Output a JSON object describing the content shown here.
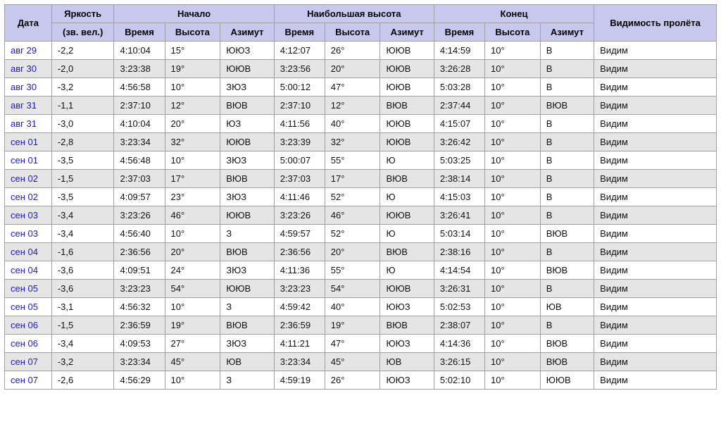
{
  "colors": {
    "header_bg": "#c8c8ee",
    "row_even_bg": "#ffffff",
    "row_odd_bg": "#e5e5e5",
    "border": "#a0a0a0",
    "link": "#1a1ad4",
    "text": "#111111"
  },
  "header": {
    "date": "Дата",
    "brightness": "Яркость",
    "brightness_sub": "(зв. вел.)",
    "start": "Начало",
    "highest": "Наибольшая высота",
    "end": "Конец",
    "visibility": "Видимость пролёта",
    "time": "Время",
    "altitude": "Высота",
    "azimuth": "Азимут"
  },
  "rows": [
    {
      "date": "авг 29",
      "mag": "-2,2",
      "s_t": "4:10:04",
      "s_a": "15°",
      "s_az": "ЮЮЗ",
      "h_t": "4:12:07",
      "h_a": "26°",
      "h_az": "ЮЮВ",
      "e_t": "4:14:59",
      "e_a": "10°",
      "e_az": "В",
      "vis": "Видим"
    },
    {
      "date": "авг 30",
      "mag": "-2,0",
      "s_t": "3:23:38",
      "s_a": "19°",
      "s_az": "ЮЮВ",
      "h_t": "3:23:56",
      "h_a": "20°",
      "h_az": "ЮЮВ",
      "e_t": "3:26:28",
      "e_a": "10°",
      "e_az": "В",
      "vis": "Видим"
    },
    {
      "date": "авг 30",
      "mag": "-3,2",
      "s_t": "4:56:58",
      "s_a": "10°",
      "s_az": "ЗЮЗ",
      "h_t": "5:00:12",
      "h_a": "47°",
      "h_az": "ЮЮВ",
      "e_t": "5:03:28",
      "e_a": "10°",
      "e_az": "В",
      "vis": "Видим"
    },
    {
      "date": "авг 31",
      "mag": "-1,1",
      "s_t": "2:37:10",
      "s_a": "12°",
      "s_az": "ВЮВ",
      "h_t": "2:37:10",
      "h_a": "12°",
      "h_az": "ВЮВ",
      "e_t": "2:37:44",
      "e_a": "10°",
      "e_az": "ВЮВ",
      "vis": "Видим"
    },
    {
      "date": "авг 31",
      "mag": "-3,0",
      "s_t": "4:10:04",
      "s_a": "20°",
      "s_az": "ЮЗ",
      "h_t": "4:11:56",
      "h_a": "40°",
      "h_az": "ЮЮВ",
      "e_t": "4:15:07",
      "e_a": "10°",
      "e_az": "В",
      "vis": "Видим"
    },
    {
      "date": "сен 01",
      "mag": "-2,8",
      "s_t": "3:23:34",
      "s_a": "32°",
      "s_az": "ЮЮВ",
      "h_t": "3:23:39",
      "h_a": "32°",
      "h_az": "ЮЮВ",
      "e_t": "3:26:42",
      "e_a": "10°",
      "e_az": "В",
      "vis": "Видим"
    },
    {
      "date": "сен 01",
      "mag": "-3,5",
      "s_t": "4:56:48",
      "s_a": "10°",
      "s_az": "ЗЮЗ",
      "h_t": "5:00:07",
      "h_a": "55°",
      "h_az": "Ю",
      "e_t": "5:03:25",
      "e_a": "10°",
      "e_az": "В",
      "vis": "Видим"
    },
    {
      "date": "сен 02",
      "mag": "-1,5",
      "s_t": "2:37:03",
      "s_a": "17°",
      "s_az": "ВЮВ",
      "h_t": "2:37:03",
      "h_a": "17°",
      "h_az": "ВЮВ",
      "e_t": "2:38:14",
      "e_a": "10°",
      "e_az": "В",
      "vis": "Видим"
    },
    {
      "date": "сен 02",
      "mag": "-3,5",
      "s_t": "4:09:57",
      "s_a": "23°",
      "s_az": "ЗЮЗ",
      "h_t": "4:11:46",
      "h_a": "52°",
      "h_az": "Ю",
      "e_t": "4:15:03",
      "e_a": "10°",
      "e_az": "В",
      "vis": "Видим"
    },
    {
      "date": "сен 03",
      "mag": "-3,4",
      "s_t": "3:23:26",
      "s_a": "46°",
      "s_az": "ЮЮВ",
      "h_t": "3:23:26",
      "h_a": "46°",
      "h_az": "ЮЮВ",
      "e_t": "3:26:41",
      "e_a": "10°",
      "e_az": "В",
      "vis": "Видим"
    },
    {
      "date": "сен 03",
      "mag": "-3,4",
      "s_t": "4:56:40",
      "s_a": "10°",
      "s_az": "З",
      "h_t": "4:59:57",
      "h_a": "52°",
      "h_az": "Ю",
      "e_t": "5:03:14",
      "e_a": "10°",
      "e_az": "ВЮВ",
      "vis": "Видим"
    },
    {
      "date": "сен 04",
      "mag": "-1,6",
      "s_t": "2:36:56",
      "s_a": "20°",
      "s_az": "ВЮВ",
      "h_t": "2:36:56",
      "h_a": "20°",
      "h_az": "ВЮВ",
      "e_t": "2:38:16",
      "e_a": "10°",
      "e_az": "В",
      "vis": "Видим"
    },
    {
      "date": "сен 04",
      "mag": "-3,6",
      "s_t": "4:09:51",
      "s_a": "24°",
      "s_az": "ЗЮЗ",
      "h_t": "4:11:36",
      "h_a": "55°",
      "h_az": "Ю",
      "e_t": "4:14:54",
      "e_a": "10°",
      "e_az": "ВЮВ",
      "vis": "Видим"
    },
    {
      "date": "сен 05",
      "mag": "-3,6",
      "s_t": "3:23:23",
      "s_a": "54°",
      "s_az": "ЮЮВ",
      "h_t": "3:23:23",
      "h_a": "54°",
      "h_az": "ЮЮВ",
      "e_t": "3:26:31",
      "e_a": "10°",
      "e_az": "В",
      "vis": "Видим"
    },
    {
      "date": "сен 05",
      "mag": "-3,1",
      "s_t": "4:56:32",
      "s_a": "10°",
      "s_az": "З",
      "h_t": "4:59:42",
      "h_a": "40°",
      "h_az": "ЮЮЗ",
      "e_t": "5:02:53",
      "e_a": "10°",
      "e_az": "ЮВ",
      "vis": "Видим"
    },
    {
      "date": "сен 06",
      "mag": "-1,5",
      "s_t": "2:36:59",
      "s_a": "19°",
      "s_az": "ВЮВ",
      "h_t": "2:36:59",
      "h_a": "19°",
      "h_az": "ВЮВ",
      "e_t": "2:38:07",
      "e_a": "10°",
      "e_az": "В",
      "vis": "Видим"
    },
    {
      "date": "сен 06",
      "mag": "-3,4",
      "s_t": "4:09:53",
      "s_a": "27°",
      "s_az": "ЗЮЗ",
      "h_t": "4:11:21",
      "h_a": "47°",
      "h_az": "ЮЮЗ",
      "e_t": "4:14:36",
      "e_a": "10°",
      "e_az": "ВЮВ",
      "vis": "Видим"
    },
    {
      "date": "сен 07",
      "mag": "-3,2",
      "s_t": "3:23:34",
      "s_a": "45°",
      "s_az": "ЮВ",
      "h_t": "3:23:34",
      "h_a": "45°",
      "h_az": "ЮВ",
      "e_t": "3:26:15",
      "e_a": "10°",
      "e_az": "ВЮВ",
      "vis": "Видим"
    },
    {
      "date": "сен 07",
      "mag": "-2,6",
      "s_t": "4:56:29",
      "s_a": "10°",
      "s_az": "З",
      "h_t": "4:59:19",
      "h_a": "26°",
      "h_az": "ЮЮЗ",
      "e_t": "5:02:10",
      "e_a": "10°",
      "e_az": "ЮЮВ",
      "vis": "Видим"
    }
  ]
}
